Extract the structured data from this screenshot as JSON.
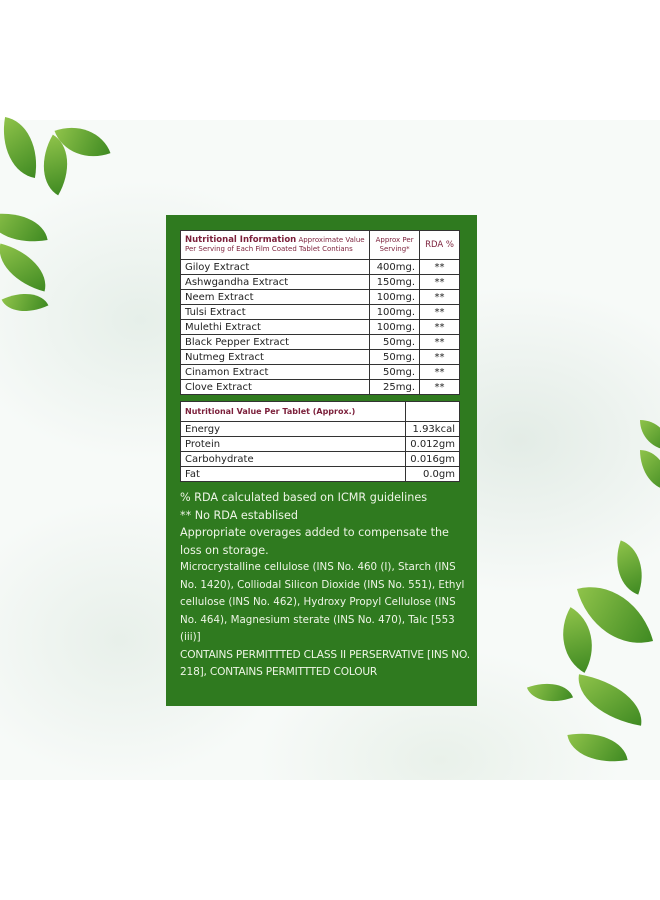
{
  "colors": {
    "panel": "#2f7a1f",
    "header_text": "#7b1f3a"
  },
  "table1": {
    "header_title": "Nutritional Information",
    "header_sub": "Approximate Value Per Serving of Each Film Coated Tablet Contians",
    "col2": "Approx Per Serving*",
    "col3": "RDA %",
    "rows": [
      {
        "name": "Giloy Extract",
        "amount": "400mg.",
        "rda": "**"
      },
      {
        "name": "Ashwgandha Extract",
        "amount": "150mg.",
        "rda": "**"
      },
      {
        "name": "Neem Extract",
        "amount": "100mg.",
        "rda": "**"
      },
      {
        "name": "Tulsi Extract",
        "amount": "100mg.",
        "rda": "**"
      },
      {
        "name": "Mulethi Extract",
        "amount": "100mg.",
        "rda": "**"
      },
      {
        "name": "Black Pepper Extract",
        "amount": "50mg.",
        "rda": "**"
      },
      {
        "name": "Nutmeg Extract",
        "amount": "50mg.",
        "rda": "**"
      },
      {
        "name": "Cinamon Extract",
        "amount": "50mg.",
        "rda": "**"
      },
      {
        "name": "Clove Extract",
        "amount": "25mg.",
        "rda": "**"
      }
    ]
  },
  "table2": {
    "header": "Nutritional Value Per Tablet (Approx.)",
    "rows": [
      {
        "name": "Energy",
        "value": "1.93kcal"
      },
      {
        "name": "Protein",
        "value": "0.012gm"
      },
      {
        "name": "Carbohydrate",
        "value": "0.016gm"
      },
      {
        "name": "Fat",
        "value": "0.0gm"
      }
    ]
  },
  "notes": {
    "rda": "% RDA calculated based on ICMR guidelines",
    "no_rda": "** No RDA establised",
    "overages": "Appropriate overages added to compensate the loss on storage.",
    "excipients": "Microcrystalline cellulose (INS No. 460 (I), Starch (INS No. 1420), Colliodal Silicon Dioxide (INS No. 551), Ethyl cellulose (INS No. 462), Hydroxy Propyl Cellulose (INS No. 464), Magnesium sterate (INS No. 470), Talc [553 (iii)]",
    "contains": "CONTAINS PERMITTTED CLASS II PERSERVATIVE [INS NO. 218], CONTAINS PERMITTTED COLOUR"
  }
}
